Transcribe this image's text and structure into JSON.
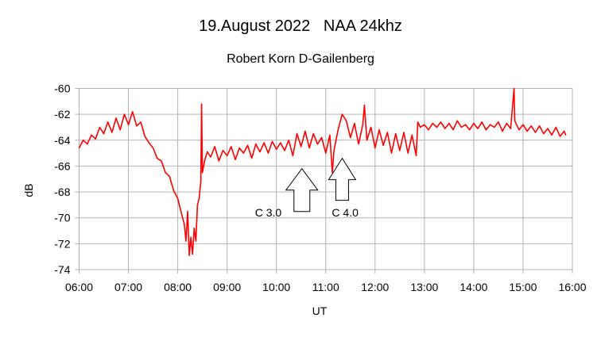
{
  "chart_data": {
    "type": "line",
    "title": "19.August 2022   NAA 24khz",
    "subtitle": "Robert Korn D-Gailenberg",
    "xlabel": "UT",
    "ylabel": "dB",
    "xlim": [
      "06:00",
      "16:00"
    ],
    "ylim": [
      -74,
      -60
    ],
    "x_ticks": [
      "06:00",
      "07:00",
      "08:00",
      "09:00",
      "10:00",
      "11:00",
      "12:00",
      "13:00",
      "14:00",
      "15:00",
      "16:00"
    ],
    "y_ticks": [
      -60,
      -62,
      -64,
      -66,
      -68,
      -70,
      -72,
      -74
    ],
    "grid": true,
    "legend": "none",
    "series_color": "#ff0000",
    "series": [
      {
        "x": [
          "06:00",
          "06:05",
          "06:10",
          "06:15",
          "06:20",
          "06:25",
          "06:30",
          "06:35",
          "06:40",
          "06:45",
          "06:50",
          "06:55",
          "07:00",
          "07:05",
          "07:10",
          "07:15",
          "07:20",
          "07:25",
          "07:30",
          "07:35",
          "07:40",
          "07:45",
          "07:50",
          "07:55",
          "08:00",
          "08:05",
          "08:08",
          "08:10",
          "08:12",
          "08:14",
          "08:16",
          "08:18",
          "08:20",
          "08:22",
          "08:24",
          "08:26",
          "08:28",
          "08:29",
          "08:30",
          "08:33",
          "08:36",
          "08:40",
          "08:45",
          "08:50",
          "08:55",
          "09:00",
          "09:05",
          "09:10",
          "09:15",
          "09:20",
          "09:25",
          "09:30",
          "09:35",
          "09:40",
          "09:45",
          "09:50",
          "09:55",
          "10:00",
          "10:05",
          "10:10",
          "10:15",
          "10:20",
          "10:25",
          "10:30",
          "10:35",
          "10:40",
          "10:45",
          "10:50",
          "10:55",
          "11:00",
          "11:05",
          "11:08",
          "11:10",
          "11:15",
          "11:20",
          "11:25",
          "11:30",
          "11:35",
          "11:40",
          "11:45",
          "11:47",
          "11:50",
          "11:55",
          "12:00",
          "12:05",
          "12:10",
          "12:15",
          "12:20",
          "12:25",
          "12:30",
          "12:35",
          "12:40",
          "12:45",
          "12:50",
          "12:52",
          "12:55",
          "13:00",
          "13:05",
          "13:10",
          "13:15",
          "13:20",
          "13:25",
          "13:30",
          "13:35",
          "13:40",
          "13:45",
          "13:50",
          "13:55",
          "14:00",
          "14:05",
          "14:10",
          "14:15",
          "14:20",
          "14:25",
          "14:30",
          "14:35",
          "14:40",
          "14:45",
          "14:49",
          "14:50",
          "14:55",
          "15:00",
          "15:05",
          "15:10",
          "15:15",
          "15:20",
          "15:25",
          "15:30",
          "15:35",
          "15:40",
          "15:45",
          "15:50",
          "15:52"
        ],
        "y": [
          -64.6,
          -64.0,
          -64.3,
          -63.6,
          -63.9,
          -63.0,
          -63.5,
          -62.6,
          -63.4,
          -62.3,
          -63.2,
          -62.0,
          -62.8,
          -61.8,
          -62.9,
          -62.6,
          -63.7,
          -64.2,
          -64.6,
          -65.4,
          -65.6,
          -66.5,
          -66.8,
          -67.9,
          -68.5,
          -69.8,
          -70.5,
          -71.8,
          -69.5,
          -72.9,
          -71.5,
          -72.8,
          -70.8,
          -71.8,
          -69.0,
          -68.5,
          -67.2,
          -61.2,
          -66.5,
          -65.5,
          -64.9,
          -65.3,
          -64.5,
          -65.6,
          -64.8,
          -65.2,
          -64.5,
          -65.5,
          -64.6,
          -65.0,
          -64.4,
          -65.4,
          -64.3,
          -64.9,
          -64.2,
          -65.0,
          -64.1,
          -64.7,
          -64.2,
          -64.8,
          -64.0,
          -65.2,
          -63.5,
          -64.5,
          -63.3,
          -64.6,
          -63.5,
          -64.3,
          -63.8,
          -65.0,
          -63.6,
          -66.5,
          -64.8,
          -63.2,
          -62.0,
          -62.5,
          -63.8,
          -62.7,
          -64.3,
          -62.8,
          -61.3,
          -64.0,
          -63.0,
          -64.6,
          -63.2,
          -64.4,
          -63.4,
          -65.0,
          -63.5,
          -64.8,
          -63.4,
          -65.0,
          -63.6,
          -65.2,
          -62.6,
          -63.0,
          -62.8,
          -63.2,
          -62.7,
          -63.0,
          -62.6,
          -63.1,
          -62.7,
          -63.2,
          -62.5,
          -63.0,
          -62.8,
          -63.2,
          -62.7,
          -63.1,
          -62.6,
          -63.2,
          -62.8,
          -63.0,
          -62.6,
          -63.3,
          -62.7,
          -63.1,
          -60.0,
          -62.5,
          -63.2,
          -62.8,
          -63.3,
          -62.9,
          -63.4,
          -62.9,
          -63.5,
          -63.1,
          -63.6,
          -63.0,
          -63.7,
          -63.3,
          -63.6
        ]
      }
    ],
    "annotations": [
      {
        "label": "C 3.0",
        "at": "10:31",
        "tip": -66.2
      },
      {
        "label": "C 4.0",
        "at": "11:20",
        "tip": -65.4
      }
    ]
  }
}
